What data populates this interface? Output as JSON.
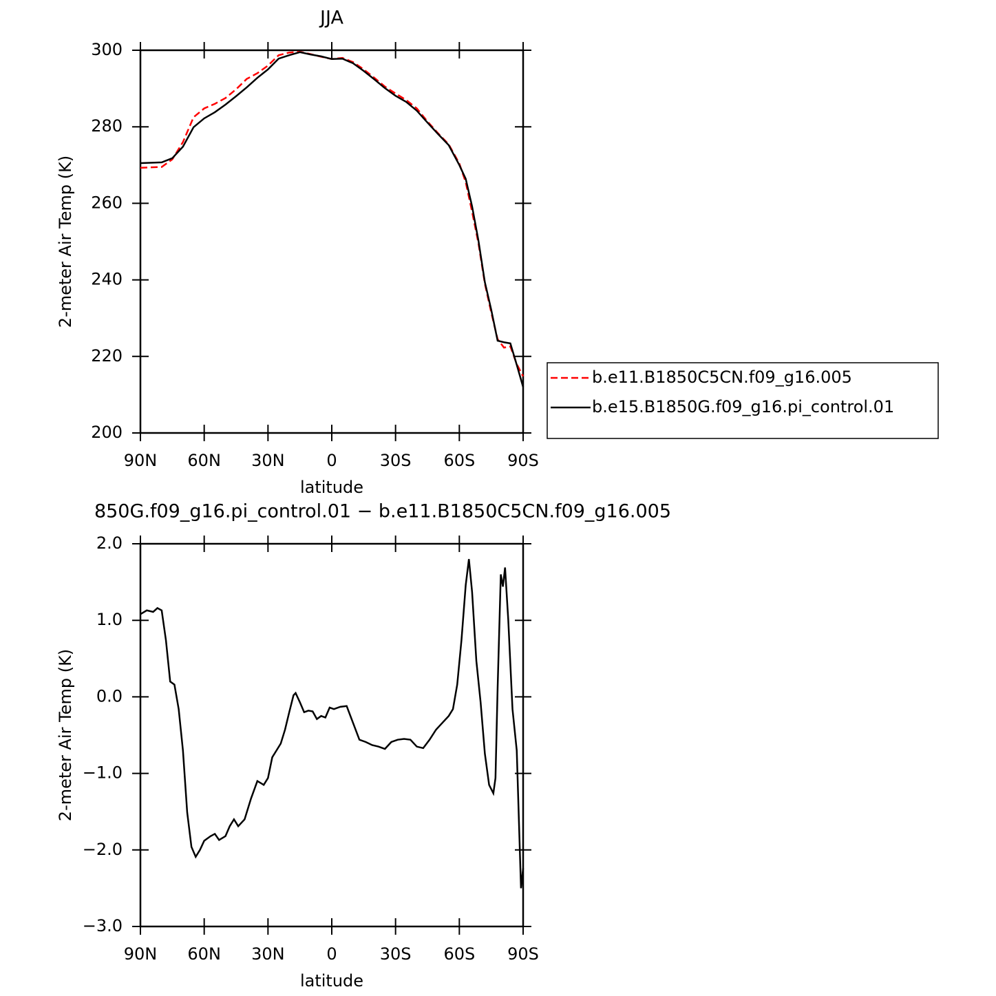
{
  "chart_data": [
    {
      "type": "line",
      "title": "JJA",
      "xlabel": "latitude",
      "ylabel": "2-meter Air Temp (K)",
      "x": [
        90,
        80,
        75,
        70,
        65,
        60,
        55,
        50,
        45,
        40,
        35,
        30,
        25,
        20,
        15,
        10,
        5,
        0,
        -5,
        -10,
        -15,
        -20,
        -25,
        -30,
        -35,
        -40,
        -45,
        -50,
        -55,
        -60,
        -63,
        -66,
        -69,
        -72,
        -75,
        -78,
        -81,
        -84,
        -87,
        -90
      ],
      "series": [
        {
          "name": "b.e11.B1850C5CN.f09_g16.005",
          "color": "#ff0000",
          "dash": true,
          "values": [
            269.3,
            269.5,
            271.5,
            276,
            282.5,
            284.8,
            286,
            287.5,
            289.8,
            292.5,
            294.0,
            296.0,
            298.7,
            299.4,
            299.6,
            299.0,
            298.3,
            297.7,
            298,
            296.9,
            295,
            292.8,
            290.5,
            288.7,
            287,
            284.8,
            281.4,
            278.3,
            275.4,
            270.4,
            265.5,
            257.8,
            249.5,
            239,
            231.5,
            224.5,
            222.3,
            222.6,
            218,
            214.8
          ]
        },
        {
          "name": "b.e15.B1850G.f09_g16.pi_control.01",
          "color": "#000000",
          "dash": false,
          "values": [
            270.5,
            270.7,
            271.8,
            274.8,
            279.9,
            282.2,
            283.8,
            285.8,
            288,
            290.3,
            292.8,
            295,
            297.8,
            298.7,
            299.5,
            298.9,
            298.4,
            297.7,
            297.8,
            296.6,
            294.6,
            292.4,
            290.1,
            288.1,
            286.5,
            284.2,
            281.1,
            278.1,
            275.2,
            270,
            266.4,
            259.2,
            250.2,
            239.4,
            232.2,
            224.1,
            223.7,
            223.4,
            217.8,
            212
          ]
        }
      ],
      "xlim": [
        90,
        -90
      ],
      "xticks": [
        {
          "value": 90,
          "label": "90N"
        },
        {
          "value": 60,
          "label": "60N"
        },
        {
          "value": 30,
          "label": "30N"
        },
        0,
        {
          "value": -30,
          "label": "30S"
        },
        {
          "value": -60,
          "label": "60S"
        },
        {
          "value": -90,
          "label": "90S"
        }
      ],
      "ylim": [
        200,
        300
      ],
      "yticks": [
        200,
        220,
        240,
        260,
        280,
        300
      ],
      "legend": "right"
    },
    {
      "type": "line",
      "title": "850G.f09_g16.pi_control.01 − b.e11.B1850C5CN.f09_g16.005",
      "xlabel": "latitude",
      "ylabel": "2-meter Air Temp (K)",
      "x": [
        90,
        87,
        84,
        82,
        80,
        78,
        76,
        74,
        72,
        70,
        68,
        66,
        64,
        62,
        60,
        57,
        55,
        53,
        50,
        48,
        46,
        44,
        41,
        38,
        35,
        32,
        30,
        28,
        26,
        24,
        22,
        20,
        18,
        17,
        15,
        13,
        11,
        9,
        7,
        5,
        3,
        1,
        -1,
        -4,
        -7,
        -10,
        -13,
        -16,
        -19,
        -22,
        -25,
        -28,
        -31,
        -34,
        -37,
        -40,
        -43,
        -46,
        -49,
        -52,
        -55,
        -57,
        -59,
        -61,
        -63,
        -64.5,
        -66,
        -68,
        -70,
        -72,
        -74,
        -76,
        -77,
        -78,
        -79.5,
        -80.5,
        -81.5,
        -83,
        -85,
        -87,
        -89,
        -90
      ],
      "series": [
        {
          "color": "#000000",
          "dash": false,
          "values": [
            1.08,
            1.13,
            1.11,
            1.16,
            1.13,
            0.74,
            0.2,
            0.16,
            -0.16,
            -0.7,
            -1.51,
            -1.96,
            -2.09,
            -2.0,
            -1.88,
            -1.82,
            -1.79,
            -1.87,
            -1.82,
            -1.69,
            -1.6,
            -1.69,
            -1.6,
            -1.33,
            -1.1,
            -1.15,
            -1.06,
            -0.79,
            -0.7,
            -0.61,
            -0.43,
            -0.2,
            0.02,
            0.05,
            -0.07,
            -0.2,
            -0.18,
            -0.19,
            -0.29,
            -0.25,
            -0.27,
            -0.14,
            -0.16,
            -0.13,
            -0.12,
            -0.34,
            -0.56,
            -0.59,
            -0.63,
            -0.65,
            -0.68,
            -0.59,
            -0.56,
            -0.55,
            -0.56,
            -0.65,
            -0.67,
            -0.56,
            -0.43,
            -0.34,
            -0.25,
            -0.16,
            0.16,
            0.74,
            1.46,
            1.8,
            1.37,
            0.47,
            -0.07,
            -0.74,
            -1.15,
            -1.26,
            -1.06,
            0.11,
            1.6,
            1.44,
            1.69,
            1.01,
            -0.16,
            -0.7,
            -2.5,
            -2.24
          ]
        }
      ],
      "xlim": [
        90,
        -90
      ],
      "xticks": [
        {
          "value": 90,
          "label": "90N"
        },
        {
          "value": 60,
          "label": "60N"
        },
        {
          "value": 30,
          "label": "30N"
        },
        0,
        {
          "value": -30,
          "label": "30S"
        },
        {
          "value": -60,
          "label": "60S"
        },
        {
          "value": -90,
          "label": "90S"
        }
      ],
      "ylim": [
        -3,
        2
      ],
      "yticks": [
        {
          "value": -3,
          "label": "−3.0"
        },
        {
          "value": -2,
          "label": "−2.0"
        },
        {
          "value": -1,
          "label": "−1.0"
        },
        {
          "value": 0,
          "label": "0.0"
        },
        {
          "value": 1,
          "label": "1.0"
        },
        {
          "value": 2,
          "label": "2.0"
        }
      ]
    }
  ]
}
